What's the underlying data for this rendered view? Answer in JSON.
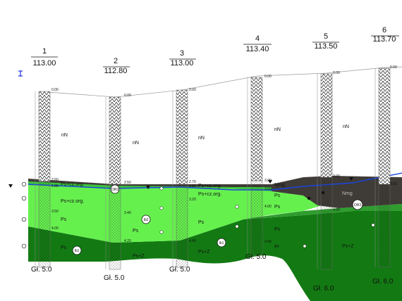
{
  "boreholes": [
    {
      "number": "1",
      "elevation": "113.00",
      "top_depth": "0.00",
      "fill_label": "nN",
      "final_depth": "Gł. 5.0",
      "marks": [
        "2.60",
        "2.80",
        "3.50",
        "4.00"
      ],
      "strata": [
        "Ps+cz.org.",
        "Ps+cz.org.",
        "Ps",
        "Ps"
      ],
      "samples": []
    },
    {
      "number": "2",
      "elevation": "112.80",
      "top_depth": "0.00",
      "fill_label": "nN",
      "final_depth": "Gł. 5.0",
      "marks": [
        "2.50",
        "3.40",
        "4.20"
      ],
      "strata": [
        "Ps",
        "Ps+Z"
      ],
      "samples": [
        "OR3",
        "Ib2",
        "Ib1"
      ]
    },
    {
      "number": "3",
      "elevation": "113.00",
      "top_depth": "0.00",
      "fill_label": "nN",
      "final_depth": "Gł. 5.0",
      "marks": [
        "2.70",
        "2.80",
        "3.20",
        "4.40"
      ],
      "strata": [
        "Ps+cz.org.",
        "Ps+cz.org.",
        "Ps",
        "Ps+Z"
      ],
      "samples": [
        "Ib1"
      ]
    },
    {
      "number": "4",
      "elevation": "113.40",
      "top_depth": "0.00",
      "fill_label": "nN",
      "final_depth": "Gł. 5.0",
      "marks": [
        "3.00",
        "3.50",
        "4.00",
        "4.80"
      ],
      "strata": [
        "Nmg",
        "Ps",
        "Ps",
        "Ps",
        "Pr"
      ],
      "samples": []
    },
    {
      "number": "5",
      "elevation": "113.50",
      "top_depth": "0.00",
      "fill_label": "nN",
      "final_depth": "Gł. 6.0",
      "marks": [
        "3.00",
        "4.00"
      ],
      "strata": [
        "Nmg",
        "Ps+Z"
      ],
      "samples": [
        "OR3"
      ]
    },
    {
      "number": "6",
      "elevation": "113.70",
      "top_depth": "0.00",
      "fill_label": "",
      "final_depth": "Gł. 6.0",
      "marks": [
        "3.50"
      ],
      "strata": [],
      "samples": []
    }
  ],
  "colors": {
    "fill": "#ffffff",
    "organic_dark": "#3f3b36",
    "light_green": "#66f04e",
    "mid_green": "#2e9d2e",
    "dark_green": "#137a13",
    "water_line": "#1a44e0",
    "hatch": "#444444",
    "elevation_marker": "#1e2bd8"
  }
}
